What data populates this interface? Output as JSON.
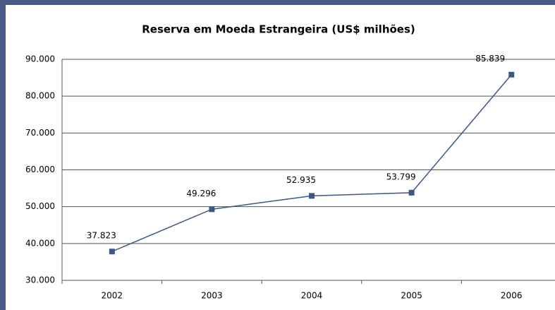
{
  "chart_data": {
    "type": "line",
    "title": "Reserva em Moeda Estrangeira (US$ milhões)",
    "categories": [
      "2002",
      "2003",
      "2004",
      "2005",
      "2006"
    ],
    "series": [
      {
        "name": "Reserva",
        "color": "#3f5787",
        "values": [
          37823,
          49296,
          52935,
          53799,
          85839
        ],
        "value_labels": [
          "37.823",
          "49.296",
          "52.935",
          "53.799",
          "85.839"
        ]
      }
    ],
    "ylim": [
      30000,
      90000
    ],
    "yticks": [
      {
        "value": 30000,
        "label": "30.000"
      },
      {
        "value": 40000,
        "label": "40.000"
      },
      {
        "value": 50000,
        "label": "50.000"
      },
      {
        "value": 60000,
        "label": "60.000"
      },
      {
        "value": 70000,
        "label": "70.000"
      },
      {
        "value": 80000,
        "label": "80.000"
      },
      {
        "value": 90000,
        "label": "90.000"
      }
    ],
    "grid": true
  }
}
